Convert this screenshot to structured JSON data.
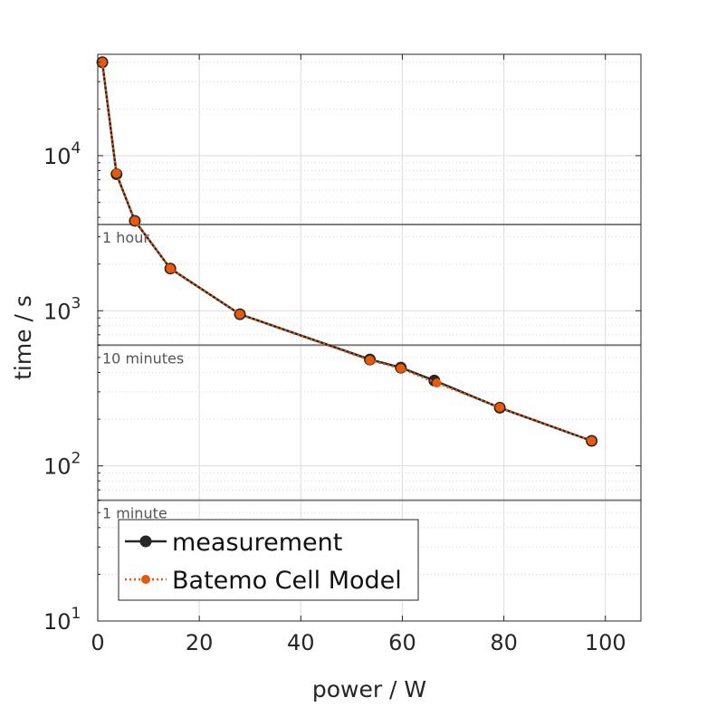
{
  "chart_data": {
    "type": "line",
    "xlabel": "power / W",
    "ylabel": "time / s",
    "xlim": [
      0,
      107
    ],
    "ylim": [
      10,
      45000
    ],
    "yscale": "log",
    "grid": true,
    "legend_position": "bottom-left",
    "x_ticks": [
      {
        "value": 0,
        "label": "0"
      },
      {
        "value": 20,
        "label": "20"
      },
      {
        "value": 40,
        "label": "40"
      },
      {
        "value": 60,
        "label": "60"
      },
      {
        "value": 80,
        "label": "80"
      },
      {
        "value": 100,
        "label": "100"
      }
    ],
    "y_ticks": [
      {
        "value": 10,
        "base": "10",
        "exp": "1"
      },
      {
        "value": 100,
        "base": "10",
        "exp": "2"
      },
      {
        "value": 1000,
        "base": "10",
        "exp": "3"
      },
      {
        "value": 10000,
        "base": "10",
        "exp": "4"
      }
    ],
    "reference_lines": [
      {
        "value": 3600,
        "label": "1 hour"
      },
      {
        "value": 600,
        "label": "10 minutes"
      },
      {
        "value": 60,
        "label": "1 minute"
      }
    ],
    "series": [
      {
        "name": "measurement",
        "color": "#262626",
        "style": "solid",
        "marker_size": 6,
        "points": [
          [
            0.9,
            40000
          ],
          [
            3.7,
            7600
          ],
          [
            7.3,
            3800
          ],
          [
            14.3,
            1870
          ],
          [
            28.0,
            950
          ],
          [
            53.6,
            485
          ],
          [
            59.7,
            430
          ],
          [
            66.3,
            355
          ],
          [
            79.2,
            237
          ],
          [
            97.3,
            145
          ]
        ]
      },
      {
        "name": "Batemo Cell Model",
        "color": "#e8590c",
        "style": "dotted",
        "marker_size": 4.5,
        "points": [
          [
            0.9,
            40000
          ],
          [
            3.7,
            7700
          ],
          [
            7.3,
            3800
          ],
          [
            14.3,
            1870
          ],
          [
            28.0,
            950
          ],
          [
            53.6,
            480
          ],
          [
            59.7,
            425
          ],
          [
            66.8,
            342
          ],
          [
            79.2,
            238
          ],
          [
            97.3,
            145
          ]
        ]
      }
    ]
  }
}
